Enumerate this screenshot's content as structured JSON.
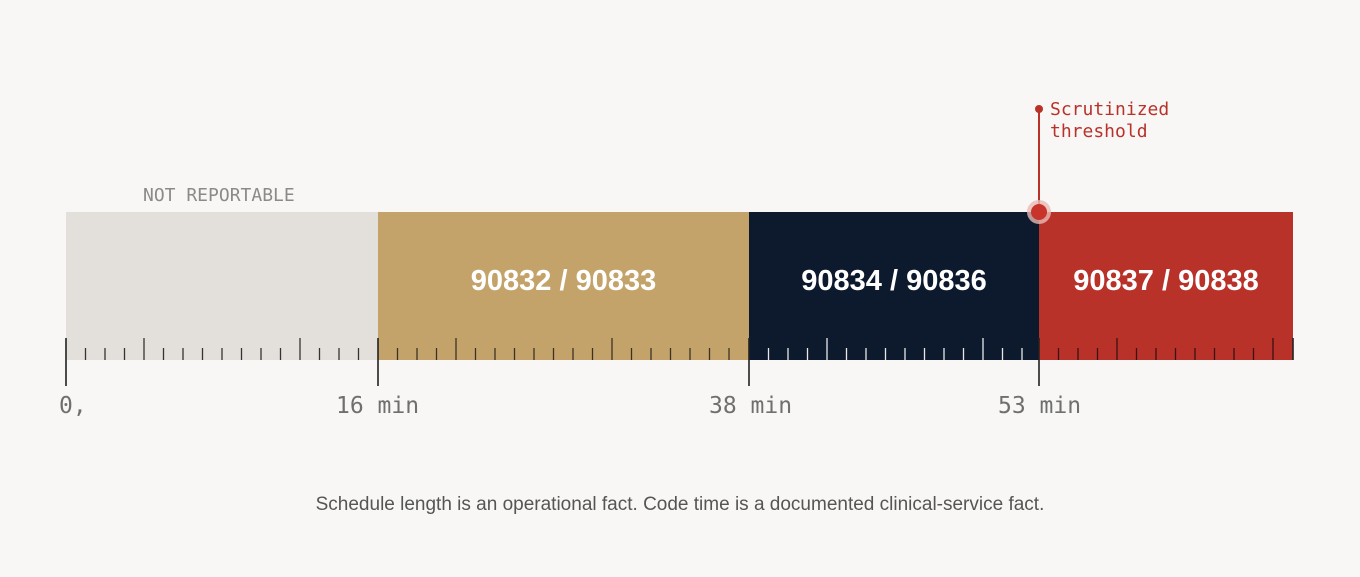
{
  "segments": [
    {
      "label": "NOT REPORTABLE"
    },
    {
      "label": "90832 / 90833"
    },
    {
      "label": "90834 / 90836"
    },
    {
      "label": "90837 / 90838"
    }
  ],
  "axis_labels": [
    "0,",
    "16 min",
    "38 min",
    "53 min"
  ],
  "threshold": {
    "lines": [
      "Scrutinized",
      "threshold"
    ]
  },
  "caption": "Schedule length is an operational fact. Code time is a documented clinical-service fact."
}
